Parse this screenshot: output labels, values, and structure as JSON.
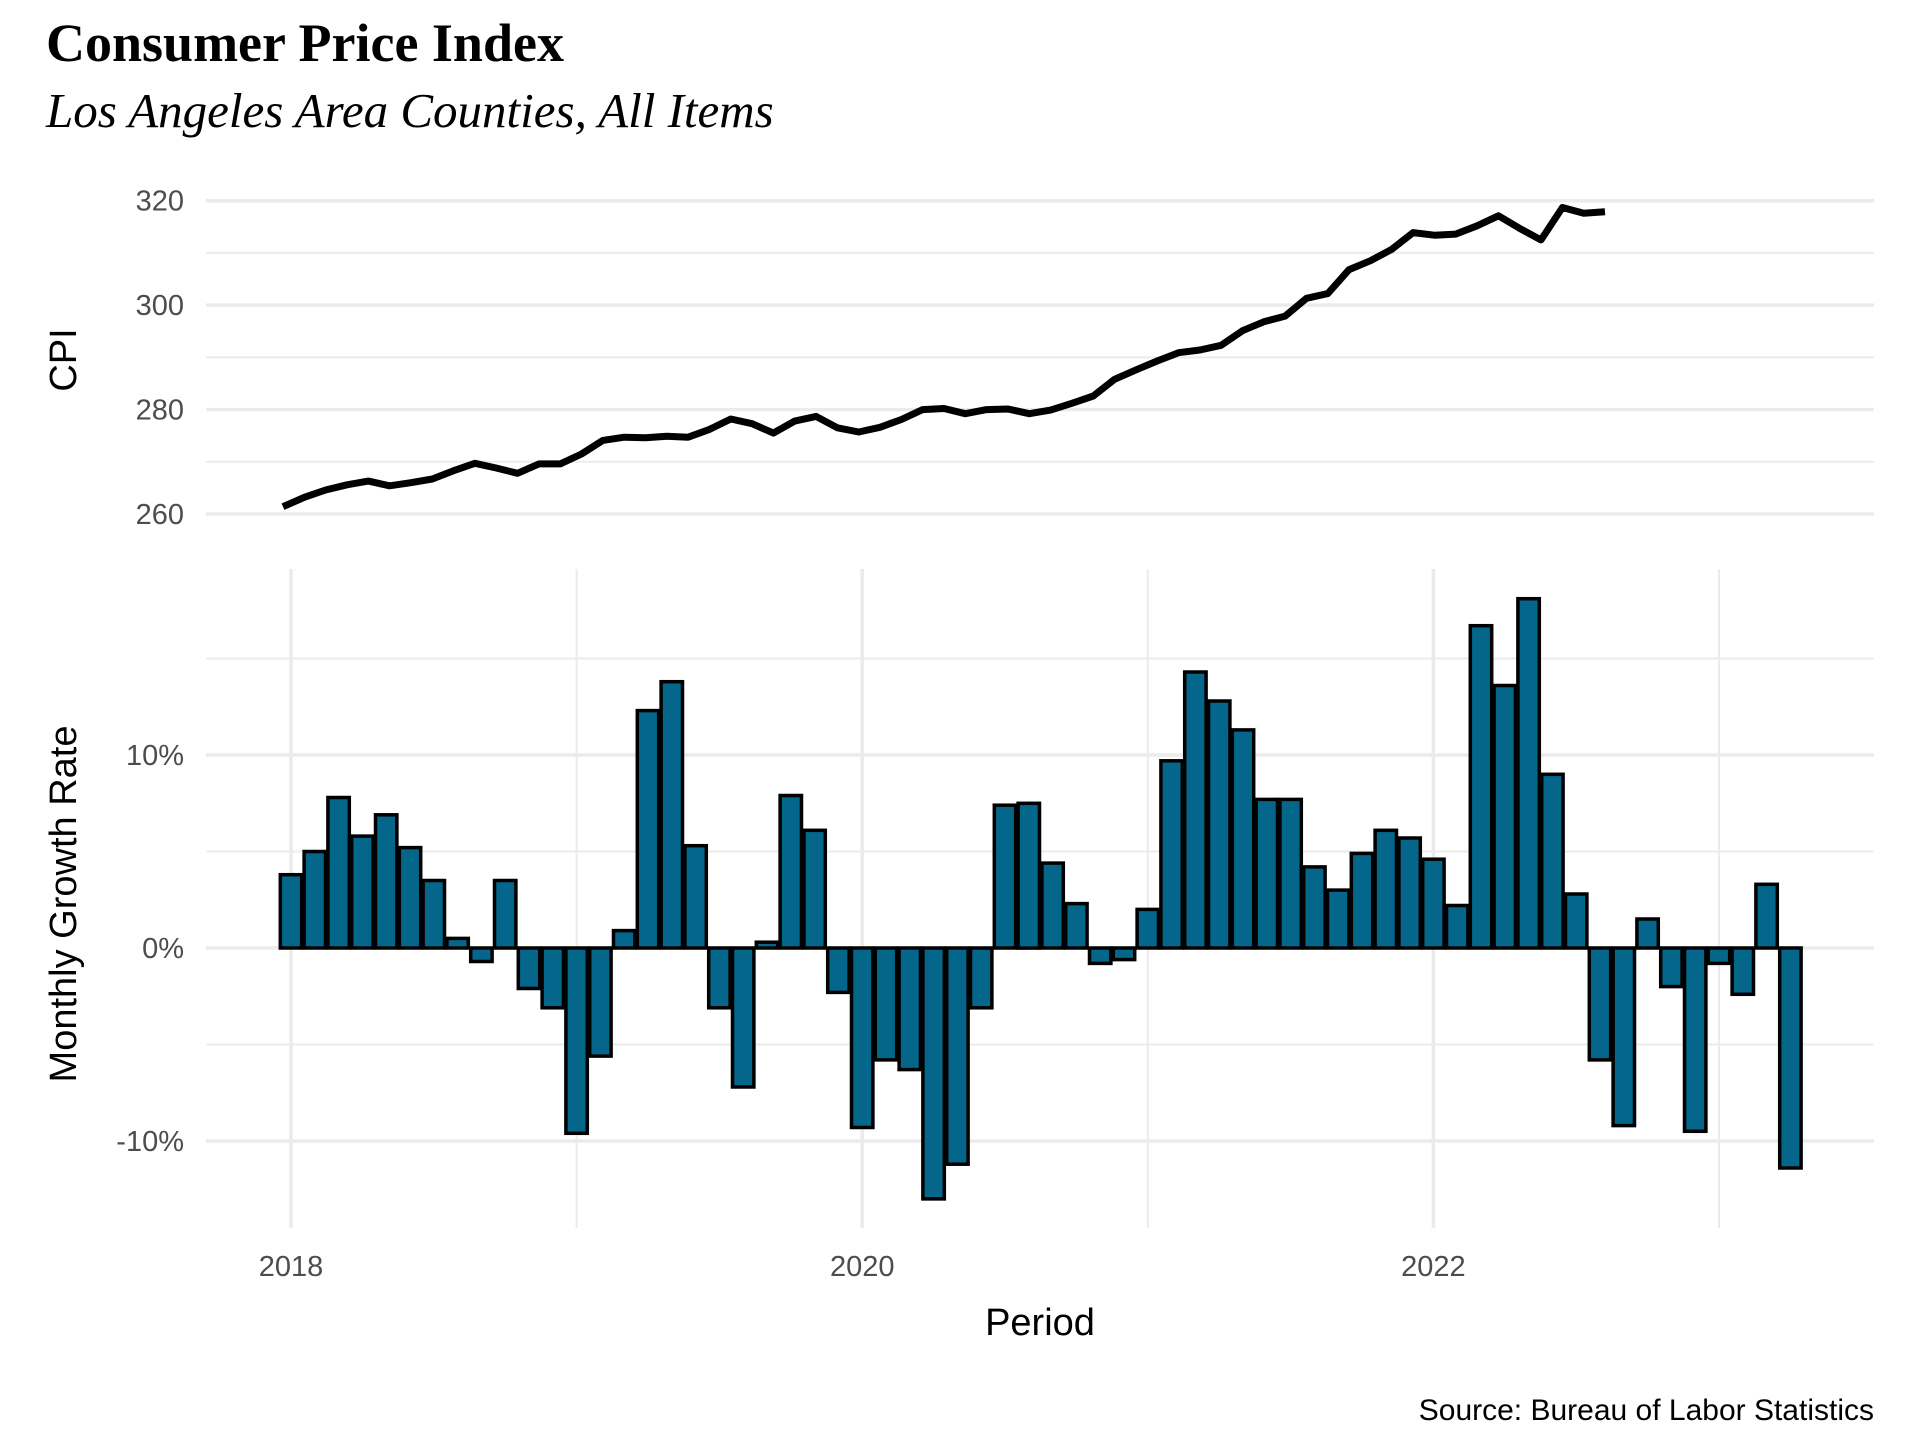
{
  "title": "Consumer Price Index",
  "subtitle": "Los Angeles Area Counties, All Items",
  "caption": "Source: Bureau of Labor Statistics",
  "colors": {
    "bar_fill": "#03668a",
    "bar_outline": "#000000",
    "line": "#000000",
    "grid": "#ebebeb",
    "tick_text": "#4d4d4d"
  },
  "chart_data": [
    {
      "type": "line",
      "panel": "top",
      "ylabel": "CPI",
      "xlabel": "",
      "ylim": [
        260,
        320
      ],
      "yticks": [
        260,
        280,
        300,
        320
      ],
      "ytick_labels": [
        "260",
        "280",
        "300",
        "320"
      ],
      "yminor": [
        270,
        290,
        310
      ],
      "grid": true,
      "legend": "none",
      "x_start": "2018-01",
      "x_step": "month",
      "series": [
        {
          "name": "CPI",
          "values": [
            261.4,
            263.2,
            264.6,
            265.6,
            266.3,
            265.4,
            266.0,
            266.7,
            268.3,
            269.7,
            268.8,
            267.8,
            269.6,
            269.6,
            271.5,
            274.1,
            274.7,
            274.6,
            274.9,
            274.7,
            276.2,
            278.2,
            277.3,
            275.5,
            277.8,
            278.7,
            276.5,
            275.7,
            276.6,
            278.1,
            280.0,
            280.2,
            279.2,
            280.0,
            280.1,
            279.2,
            279.9,
            281.2,
            282.6,
            285.8,
            287.6,
            289.3,
            290.9,
            291.4,
            292.3,
            295.1,
            296.8,
            297.9,
            301.3,
            302.2,
            306.8,
            308.5,
            310.7,
            313.9,
            313.4,
            313.6,
            315.2,
            317.1,
            314.7,
            312.5,
            318.7,
            317.6,
            317.9
          ]
        }
      ]
    },
    {
      "type": "bar",
      "panel": "bottom",
      "ylabel": "Monthly Growth Rate",
      "xlabel": "Period",
      "ylim": [
        -14,
        19
      ],
      "yticks": [
        -10,
        0,
        10
      ],
      "ytick_labels": [
        "-10%",
        "0%",
        "10%"
      ],
      "yminor": [
        -5,
        5,
        15
      ],
      "xlim": [
        "2017-09",
        "2023-07"
      ],
      "xticks": [
        2018,
        2020,
        2022
      ],
      "xtick_labels": [
        "2018",
        "2020",
        "2022"
      ],
      "xminor": [
        2019,
        2021,
        2023
      ],
      "grid": true,
      "legend": "none",
      "x_start": "2018-01",
      "x_step": "month",
      "unit": "percent",
      "series": [
        {
          "name": "Monthly Growth Rate",
          "values": [
            3.8,
            5.0,
            7.8,
            5.8,
            6.9,
            5.2,
            3.5,
            0.5,
            -0.7,
            3.5,
            -2.1,
            -3.1,
            -9.6,
            -5.6,
            0.9,
            12.3,
            13.8,
            5.3,
            -3.1,
            -7.2,
            0.3,
            7.9,
            6.1,
            -2.3,
            -9.3,
            -5.8,
            -6.3,
            -13.0,
            -11.2,
            -3.1,
            7.4,
            7.5,
            4.4,
            2.3,
            -0.8,
            -0.6,
            2.0,
            9.7,
            14.3,
            12.8,
            11.3,
            7.7,
            7.7,
            4.2,
            3.0,
            4.9,
            6.1,
            5.7,
            4.6,
            2.2,
            16.7,
            13.6,
            18.1,
            9.0,
            2.8,
            -5.8,
            -9.2,
            1.5,
            -2.0,
            -9.5,
            -0.8,
            -2.4,
            3.3,
            -11.4
          ]
        }
      ]
    }
  ]
}
